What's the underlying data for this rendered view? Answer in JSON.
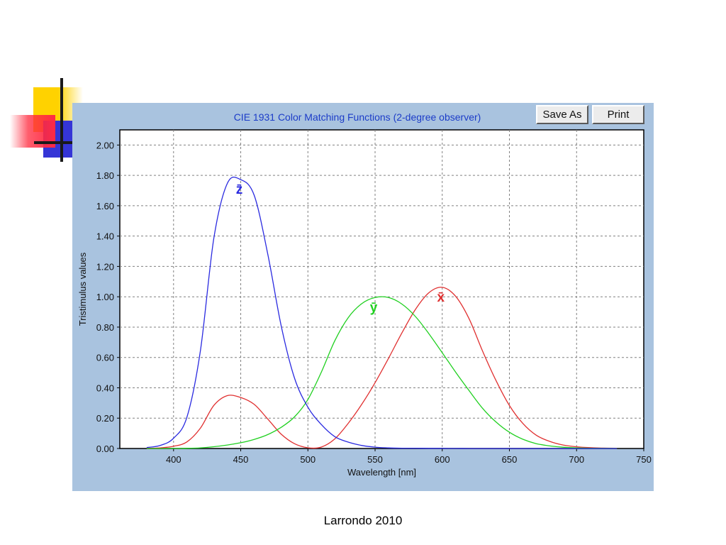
{
  "footer": {
    "credit": "Larrondo 2010"
  },
  "toolbar": {
    "save_as_label": "Save As",
    "print_label": "Print"
  },
  "colors": {
    "window_bg": "#a9c3df",
    "plot_bg": "#ffffff",
    "grid": "#808080",
    "title": "#1c3cc8",
    "x_bar": "#e03030",
    "y_bar": "#20d020",
    "z_bar": "#2a2ae0"
  },
  "chart_data": {
    "type": "line",
    "title": "CIE 1931  Color Matching Functions (2-degree observer)",
    "xlabel": "Wavelength [nm]",
    "ylabel": "Tristimulus values",
    "xlim": [
      360,
      750
    ],
    "ylim": [
      0,
      2.1
    ],
    "grid": true,
    "xticks": [
      400,
      450,
      500,
      550,
      600,
      650,
      700,
      750
    ],
    "xtick_labels": [
      "400",
      "450",
      "500",
      "550",
      "600",
      "650",
      "700",
      "750"
    ],
    "yticks": [
      0,
      0.2,
      0.4,
      0.6,
      0.8,
      1.0,
      1.2,
      1.4,
      1.6,
      1.8,
      2.0
    ],
    "ytick_labels": [
      "0.00",
      "0.20",
      "0.40",
      "0.60",
      "0.80",
      "1.00",
      "1.20",
      "1.40",
      "1.60",
      "1.80",
      "2.00"
    ],
    "series": [
      {
        "name": "x̄",
        "color": "#e03030",
        "x": [
          380,
          390,
          400,
          410,
          420,
          430,
          440,
          450,
          460,
          470,
          480,
          490,
          500,
          510,
          520,
          530,
          540,
          550,
          560,
          570,
          580,
          590,
          600,
          610,
          620,
          630,
          640,
          650,
          660,
          670,
          680,
          690,
          700,
          710,
          720,
          730
        ],
        "values": [
          0.0014,
          0.0042,
          0.0143,
          0.0435,
          0.1344,
          0.2839,
          0.3483,
          0.3362,
          0.2908,
          0.1954,
          0.0956,
          0.032,
          0.0049,
          0.0093,
          0.0633,
          0.1655,
          0.2904,
          0.4334,
          0.5945,
          0.7621,
          0.9163,
          1.0263,
          1.0622,
          1.0026,
          0.8544,
          0.6424,
          0.4479,
          0.2835,
          0.1649,
          0.0874,
          0.0468,
          0.0227,
          0.0114,
          0.0058,
          0.0029,
          0.0014
        ]
      },
      {
        "name": "ȳ",
        "color": "#20d020",
        "x": [
          380,
          390,
          400,
          410,
          420,
          430,
          440,
          450,
          460,
          470,
          480,
          490,
          500,
          510,
          520,
          530,
          540,
          550,
          560,
          570,
          580,
          590,
          600,
          610,
          620,
          630,
          640,
          650,
          660,
          670,
          680,
          690,
          700,
          710,
          720,
          730
        ],
        "values": [
          0.0,
          0.0001,
          0.0004,
          0.0012,
          0.004,
          0.0116,
          0.023,
          0.038,
          0.06,
          0.091,
          0.139,
          0.208,
          0.323,
          0.503,
          0.71,
          0.862,
          0.954,
          0.995,
          0.995,
          0.952,
          0.87,
          0.757,
          0.631,
          0.503,
          0.381,
          0.265,
          0.175,
          0.107,
          0.061,
          0.032,
          0.017,
          0.0082,
          0.0041,
          0.0021,
          0.001,
          0.0005
        ]
      },
      {
        "name": "z̄",
        "color": "#2a2ae0",
        "x": [
          380,
          390,
          400,
          410,
          420,
          430,
          440,
          450,
          460,
          470,
          480,
          490,
          500,
          510,
          520,
          530,
          540,
          550,
          560,
          570,
          580,
          590,
          600,
          610,
          620,
          630,
          640,
          650,
          660,
          670,
          680,
          690,
          700,
          710,
          720,
          730
        ],
        "values": [
          0.0065,
          0.0201,
          0.0679,
          0.2074,
          0.6456,
          1.3856,
          1.7471,
          1.7721,
          1.6692,
          1.2876,
          0.813,
          0.4652,
          0.272,
          0.1582,
          0.0782,
          0.0422,
          0.0203,
          0.0087,
          0.0039,
          0.0021,
          0.0017,
          0.0011,
          0.0008,
          0.0003,
          0.0002,
          0.0,
          0.0,
          0.0,
          0.0,
          0.0,
          0.0,
          0.0,
          0.0,
          0.0,
          0.0,
          0.0
        ]
      }
    ]
  }
}
